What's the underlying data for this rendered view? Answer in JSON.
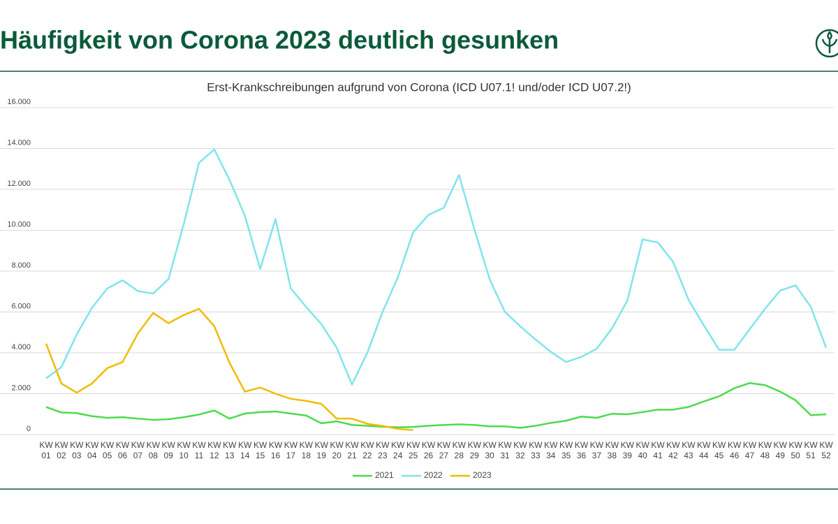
{
  "header": {
    "title": "Häufigkeit von Corona 2023 deutlich gesunken"
  },
  "chart_data": {
    "type": "line",
    "title": "Erst-Krankschreibungen aufgrund von Corona (ICD U07.1! und/oder ICD U07.2!)",
    "categories": [
      "KW\n01",
      "KW\n02",
      "KW\n03",
      "KW\n04",
      "KW\n05",
      "KW\n06",
      "KW\n07",
      "KW\n08",
      "KW\n09",
      "KW\n10",
      "KW\n11",
      "KW\n12",
      "KW\n13",
      "KW\n14",
      "KW\n15",
      "KW\n16",
      "KW\n17",
      "KW\n18",
      "KW\n19",
      "KW\n20",
      "KW\n21",
      "KW\n22",
      "KW\n23",
      "KW\n24",
      "KW\n25",
      "KW\n26",
      "KW\n27",
      "KW\n28",
      "KW\n29",
      "KW\n30",
      "KW\n31",
      "KW\n32",
      "KW\n33",
      "KW\n34",
      "KW\n35",
      "KW\n36",
      "KW\n37",
      "KW\n38",
      "KW\n39",
      "KW\n40",
      "KW\n41",
      "KW\n42",
      "KW\n43",
      "KW\n44",
      "KW\n45",
      "KW\n46",
      "KW\n47",
      "KW\n48",
      "KW\n49",
      "KW\n50",
      "KW\n51",
      "KW\n52"
    ],
    "series": [
      {
        "name": "2021",
        "color": "#4cdb4c",
        "values": [
          1350,
          1080,
          1050,
          900,
          820,
          850,
          780,
          720,
          750,
          850,
          980,
          1180,
          780,
          1030,
          1100,
          1130,
          1030,
          930,
          550,
          650,
          470,
          430,
          380,
          360,
          370,
          430,
          470,
          500,
          470,
          400,
          400,
          330,
          430,
          570,
          680,
          880,
          820,
          1020,
          990,
          1100,
          1220,
          1220,
          1350,
          1620,
          1870,
          2270,
          2520,
          2420,
          2100,
          1680,
          950,
          990
        ]
      },
      {
        "name": "2022",
        "color": "#80e4eb",
        "values": [
          2750,
          3300,
          4900,
          6200,
          7150,
          7550,
          7020,
          6900,
          7600,
          10300,
          13300,
          13950,
          12450,
          10700,
          8100,
          10550,
          7150,
          6250,
          5400,
          4250,
          2450,
          4000,
          6000,
          7700,
          9900,
          10750,
          11100,
          12700,
          10050,
          7600,
          6000,
          5300,
          4650,
          4050,
          3550,
          3800,
          4200,
          5200,
          6550,
          9550,
          9400,
          8450,
          6600,
          5350,
          4150,
          4150,
          5150,
          6150,
          7050,
          7300,
          6250,
          4250
        ]
      },
      {
        "name": "2023",
        "color": "#f0bc00",
        "values": [
          4450,
          2500,
          2050,
          2500,
          3250,
          3550,
          4950,
          5950,
          5450,
          5850,
          6150,
          5300,
          3500,
          2100,
          2300,
          2000,
          1750,
          1650,
          1500,
          780,
          780,
          530,
          420,
          280,
          220,
          null,
          null,
          null,
          null,
          null,
          null,
          null,
          null,
          null,
          null,
          null,
          null,
          null,
          null,
          null,
          null,
          null,
          null,
          null,
          null,
          null,
          null,
          null,
          null,
          null,
          null,
          null
        ]
      }
    ],
    "ylim": [
      0,
      16000
    ],
    "yticks": [
      0,
      {
        "value": 2000,
        "label": "2.000"
      },
      {
        "value": 4000,
        "label": "4.000"
      },
      {
        "value": 6000,
        "label": "6.000"
      },
      {
        "value": 8000,
        "label": "8.000"
      },
      {
        "value": 10000,
        "label": "10.000"
      },
      {
        "value": 12000,
        "label": "12.000"
      },
      {
        "value": 14000,
        "label": "14.000"
      },
      {
        "value": 16000,
        "label": "16.000"
      }
    ],
    "grid": true
  }
}
